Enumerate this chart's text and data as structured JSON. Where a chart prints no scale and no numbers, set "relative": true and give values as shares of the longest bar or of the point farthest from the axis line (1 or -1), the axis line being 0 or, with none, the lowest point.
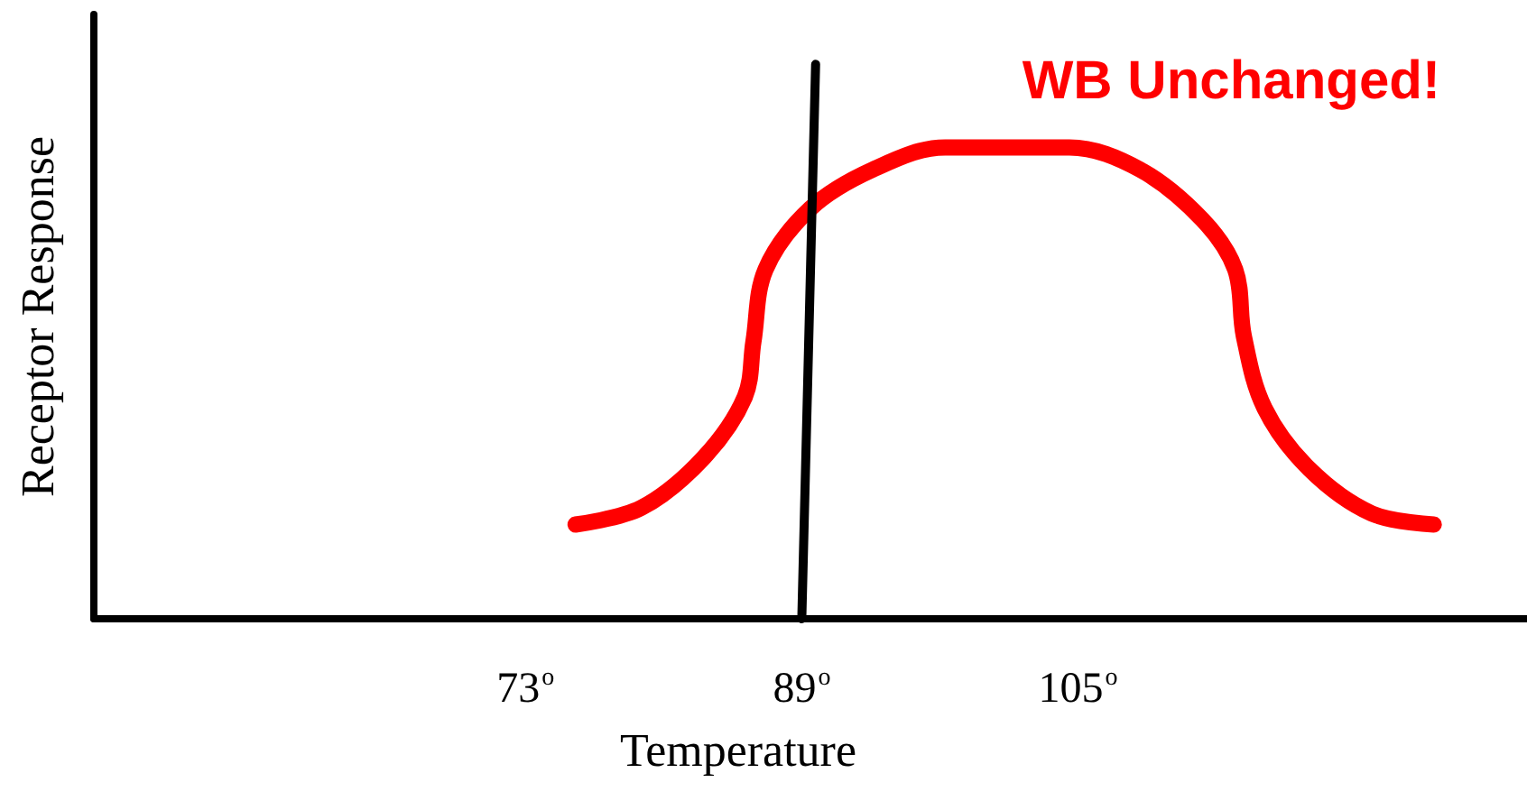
{
  "chart_data": {
    "type": "line",
    "relative": true,
    "xlabel": "Temperature",
    "ylabel": "Receptor Response",
    "xlim": [
      48,
      131
    ],
    "xticks": [
      {
        "value": 73,
        "label": "73$^{o}$"
      },
      {
        "value": 89,
        "label": "89$^{o}$"
      },
      {
        "value": 105,
        "label": "105$^{o}$"
      }
    ],
    "grid": false,
    "marker": "none",
    "line_style": "solid",
    "annotations": [
      "WB Unchanged!"
    ],
    "series": [
      {
        "color": "#ff0000",
        "x": [
          75.9,
          79.7,
          83.3,
          85.7,
          86.2,
          86.9,
          89.5,
          93.1,
          97.3,
          100.6,
          104.5,
          108.6,
          112.2,
          114.1,
          114.6,
          115.8,
          118.4,
          122.0,
          125.6
        ],
        "values": [
          0.17,
          0.2,
          0.29,
          0.4,
          0.5,
          0.63,
          0.74,
          0.81,
          0.85,
          0.85,
          0.85,
          0.81,
          0.72,
          0.63,
          0.51,
          0.38,
          0.27,
          0.19,
          0.17
        ]
      },
      {
        "color": "#000000",
        "x": [
          89.0,
          89.8
        ],
        "values": [
          0,
          1
        ]
      }
    ]
  }
}
